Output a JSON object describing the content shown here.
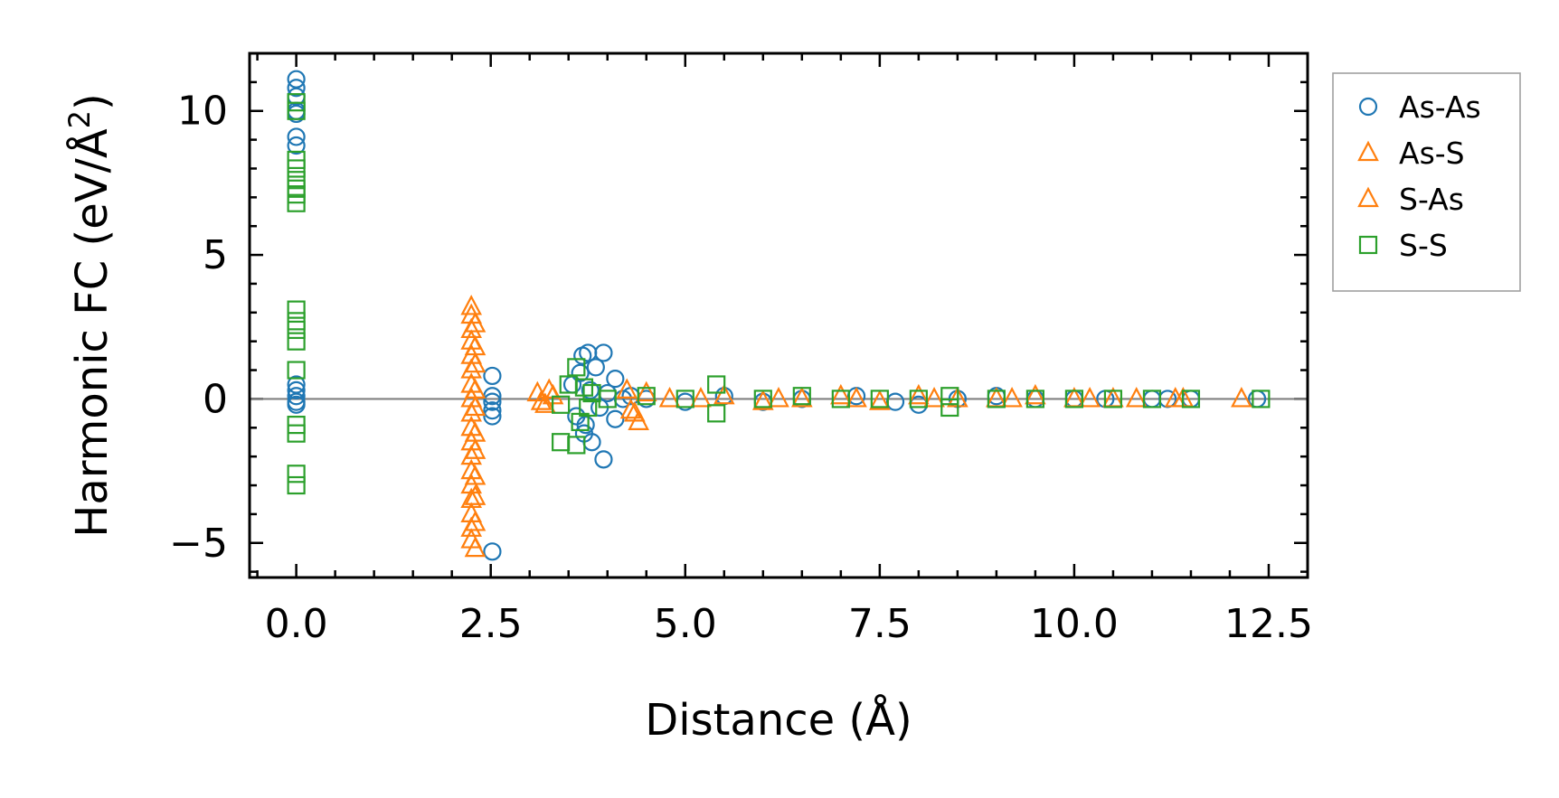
{
  "chart_data": {
    "type": "scatter",
    "xlabel": "Distance (Å)",
    "ylabel": "Harmonic FC (eV/Å",
    "ylabel_sup": "2",
    "ylabel_close": ")",
    "xlim": [
      -0.6,
      13.0
    ],
    "ylim": [
      -6.2,
      12.0
    ],
    "x_ticks": [
      0.0,
      2.5,
      5.0,
      7.5,
      10.0,
      12.5
    ],
    "x_tick_labels": [
      "0.0",
      "2.5",
      "5.0",
      "7.5",
      "10.0",
      "12.5"
    ],
    "y_ticks": [
      -5,
      0,
      5,
      10
    ],
    "y_tick_labels": [
      "−5",
      "0",
      "5",
      "10"
    ],
    "zero_line": 0,
    "legend": {
      "placement": "outside-right-top",
      "entries": [
        "As-As",
        "As-S",
        "S-As",
        "S-S"
      ]
    },
    "series": [
      {
        "name": "As-As",
        "marker": "circle",
        "color": "#1f77b4",
        "points": [
          [
            0.0,
            11.1
          ],
          [
            0.0,
            10.8
          ],
          [
            0.0,
            10.5
          ],
          [
            0.0,
            10.0
          ],
          [
            0.0,
            9.9
          ],
          [
            0.0,
            9.1
          ],
          [
            0.0,
            8.8
          ],
          [
            0.0,
            0.5
          ],
          [
            0.0,
            0.3
          ],
          [
            0.0,
            0.1
          ],
          [
            0.0,
            -0.1
          ],
          [
            0.0,
            -0.2
          ],
          [
            2.52,
            0.8
          ],
          [
            2.52,
            0.1
          ],
          [
            2.52,
            -0.1
          ],
          [
            2.52,
            -0.4
          ],
          [
            2.52,
            -0.6
          ],
          [
            2.52,
            -5.3
          ],
          [
            3.55,
            0.5
          ],
          [
            3.6,
            -0.6
          ],
          [
            3.65,
            0.9
          ],
          [
            3.68,
            1.5
          ],
          [
            3.7,
            -1.2
          ],
          [
            3.72,
            -0.9
          ],
          [
            3.75,
            1.6
          ],
          [
            3.78,
            0.3
          ],
          [
            3.8,
            -1.5
          ],
          [
            3.85,
            1.1
          ],
          [
            3.9,
            -0.3
          ],
          [
            3.95,
            1.6
          ],
          [
            3.95,
            -2.1
          ],
          [
            4.0,
            0.2
          ],
          [
            4.1,
            0.7
          ],
          [
            4.1,
            -0.7
          ],
          [
            4.2,
            0.0
          ],
          [
            4.3,
            0.1
          ],
          [
            4.5,
            0.0
          ],
          [
            5.0,
            -0.1
          ],
          [
            5.5,
            0.1
          ],
          [
            6.0,
            -0.1
          ],
          [
            6.5,
            0.0
          ],
          [
            7.2,
            0.1
          ],
          [
            7.7,
            -0.1
          ],
          [
            8.0,
            -0.2
          ],
          [
            8.5,
            0.0
          ],
          [
            9.0,
            0.1
          ],
          [
            9.5,
            0.0
          ],
          [
            10.0,
            0.0
          ],
          [
            10.4,
            0.0
          ],
          [
            11.0,
            0.0
          ],
          [
            11.2,
            0.0
          ],
          [
            11.5,
            0.0
          ],
          [
            12.35,
            0.0
          ]
        ]
      },
      {
        "name": "As-S",
        "marker": "triangle",
        "color": "#ff7f0e",
        "points": [
          [
            2.25,
            3.2
          ],
          [
            2.25,
            2.9
          ],
          [
            2.25,
            2.4
          ],
          [
            2.25,
            2.0
          ],
          [
            2.25,
            1.5
          ],
          [
            2.25,
            1.0
          ],
          [
            2.25,
            0.5
          ],
          [
            2.25,
            0.0
          ],
          [
            2.25,
            -0.5
          ],
          [
            2.25,
            -1.0
          ],
          [
            2.25,
            -1.5
          ],
          [
            2.25,
            -2.0
          ],
          [
            2.25,
            -2.5
          ],
          [
            2.25,
            -3.0
          ],
          [
            2.25,
            -3.5
          ],
          [
            2.25,
            -4.0
          ],
          [
            2.25,
            -4.5
          ],
          [
            2.25,
            -4.9
          ],
          [
            3.1,
            0.2
          ],
          [
            3.2,
            -0.2
          ],
          [
            3.3,
            0.1
          ],
          [
            4.3,
            -0.4
          ],
          [
            4.4,
            -0.8
          ],
          [
            4.5,
            0.2
          ],
          [
            4.8,
            0.0
          ],
          [
            5.5,
            0.1
          ],
          [
            6.0,
            -0.1
          ],
          [
            6.5,
            0.0
          ],
          [
            7.0,
            0.1
          ],
          [
            7.5,
            -0.1
          ],
          [
            8.0,
            0.1
          ],
          [
            8.5,
            0.0
          ],
          [
            9.0,
            0.0
          ],
          [
            9.5,
            0.1
          ],
          [
            10.0,
            0.0
          ],
          [
            10.5,
            0.0
          ],
          [
            10.8,
            0.0
          ],
          [
            11.4,
            0.0
          ],
          [
            12.15,
            0.0
          ]
        ]
      },
      {
        "name": "S-As",
        "marker": "triangle",
        "color": "#ff7f0e",
        "points": [
          [
            2.3,
            2.6
          ],
          [
            2.3,
            1.8
          ],
          [
            2.3,
            1.2
          ],
          [
            2.3,
            0.3
          ],
          [
            2.3,
            -0.3
          ],
          [
            2.3,
            -1.2
          ],
          [
            2.3,
            -1.8
          ],
          [
            2.3,
            -2.7
          ],
          [
            2.3,
            -3.4
          ],
          [
            2.3,
            -4.3
          ],
          [
            2.3,
            -5.2
          ],
          [
            3.15,
            -0.1
          ],
          [
            3.25,
            0.3
          ],
          [
            4.25,
            0.3
          ],
          [
            4.35,
            -0.5
          ],
          [
            5.2,
            0.0
          ],
          [
            6.2,
            0.0
          ],
          [
            7.2,
            0.0
          ],
          [
            8.2,
            0.0
          ],
          [
            9.2,
            0.0
          ],
          [
            10.2,
            0.0
          ],
          [
            11.3,
            0.0
          ]
        ]
      },
      {
        "name": "S-S",
        "marker": "square",
        "color": "#2ca02c",
        "points": [
          [
            0.0,
            10.3
          ],
          [
            0.0,
            10.0
          ],
          [
            0.0,
            8.3
          ],
          [
            0.0,
            8.0
          ],
          [
            0.0,
            7.6
          ],
          [
            0.0,
            7.3
          ],
          [
            0.0,
            7.1
          ],
          [
            0.0,
            6.8
          ],
          [
            0.0,
            3.1
          ],
          [
            0.0,
            2.7
          ],
          [
            0.0,
            2.4
          ],
          [
            0.0,
            2.0
          ],
          [
            0.0,
            1.0
          ],
          [
            0.0,
            -0.9
          ],
          [
            0.0,
            -1.2
          ],
          [
            0.0,
            -2.6
          ],
          [
            0.0,
            -3.0
          ],
          [
            3.4,
            -0.2
          ],
          [
            3.4,
            -1.5
          ],
          [
            3.5,
            0.5
          ],
          [
            3.6,
            -1.6
          ],
          [
            3.6,
            1.1
          ],
          [
            3.65,
            -0.8
          ],
          [
            3.7,
            0.4
          ],
          [
            3.75,
            -0.3
          ],
          [
            3.8,
            0.2
          ],
          [
            4.0,
            0.0
          ],
          [
            4.5,
            0.1
          ],
          [
            5.0,
            0.0
          ],
          [
            5.4,
            0.5
          ],
          [
            5.4,
            -0.5
          ],
          [
            6.0,
            0.0
          ],
          [
            6.5,
            0.1
          ],
          [
            7.0,
            0.0
          ],
          [
            7.5,
            0.0
          ],
          [
            8.0,
            0.0
          ],
          [
            8.4,
            0.1
          ],
          [
            8.4,
            -0.3
          ],
          [
            9.0,
            0.0
          ],
          [
            9.5,
            0.0
          ],
          [
            10.0,
            0.0
          ],
          [
            10.5,
            0.0
          ],
          [
            11.0,
            0.0
          ],
          [
            11.5,
            0.0
          ],
          [
            12.4,
            0.0
          ]
        ]
      }
    ]
  }
}
